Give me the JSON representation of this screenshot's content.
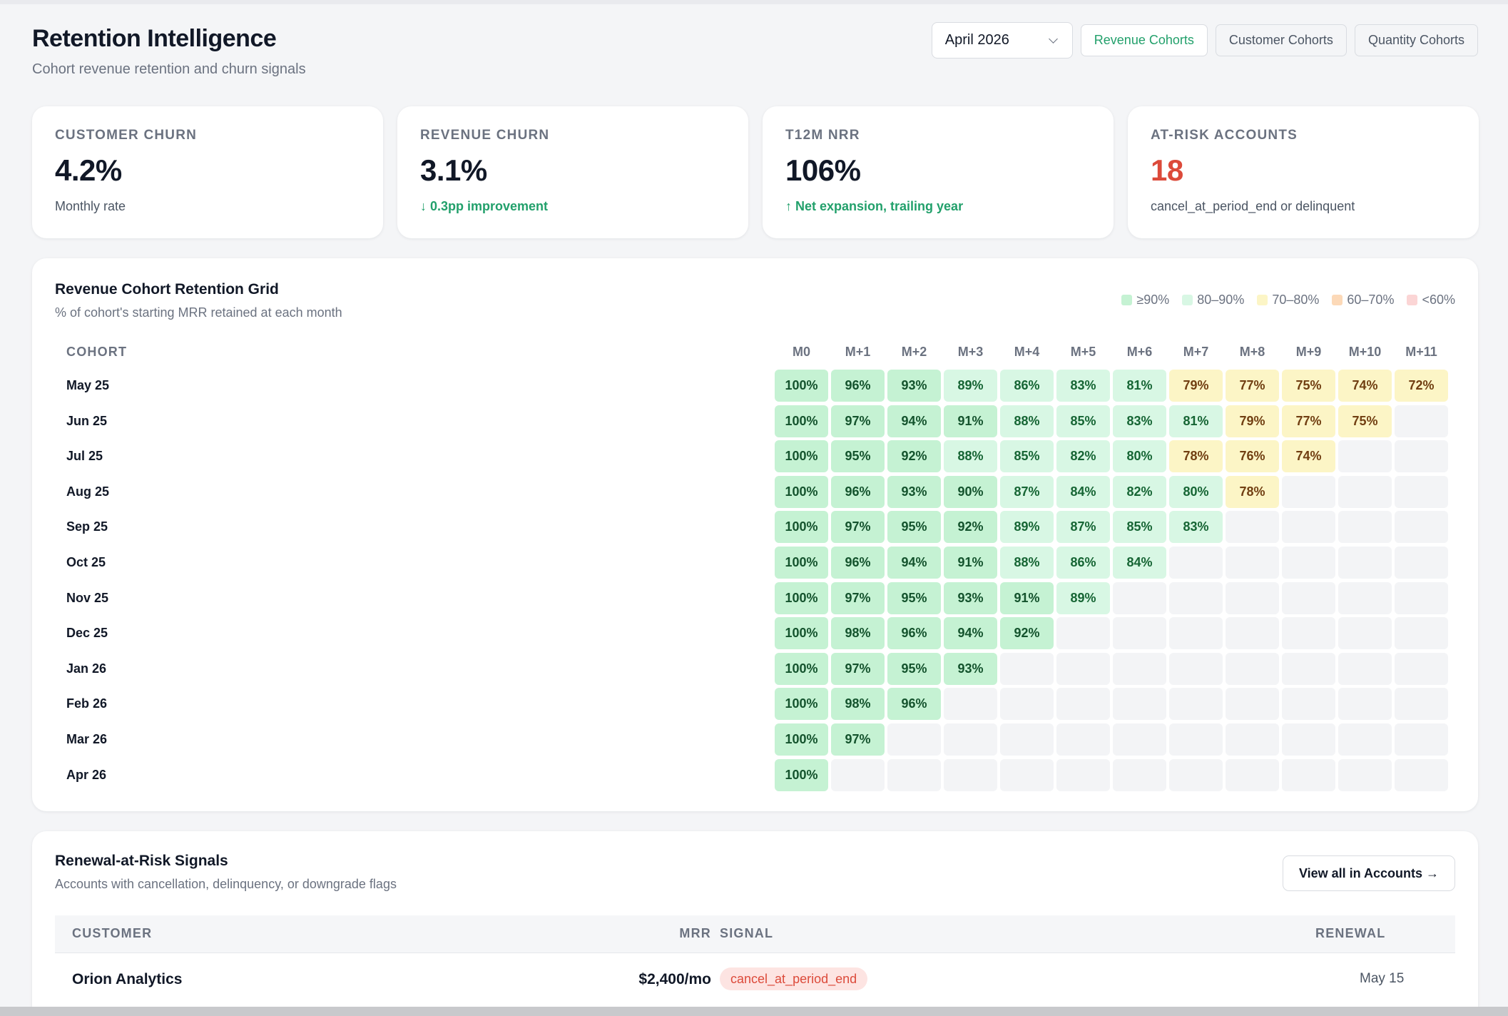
{
  "header": {
    "title": "Retention Intelligence",
    "subtitle": "Cohort revenue retention and churn signals",
    "month_select": "April 2026",
    "tabs": [
      {
        "label": "Revenue Cohorts",
        "active": true
      },
      {
        "label": "Customer Cohorts",
        "active": false
      },
      {
        "label": "Quantity Cohorts",
        "active": false
      }
    ]
  },
  "kpis": [
    {
      "label": "CUSTOMER CHURN",
      "value": "4.2%",
      "note": "Monthly rate"
    },
    {
      "label": "REVENUE CHURN",
      "value": "3.1%",
      "note": "↓ 0.3pp improvement"
    },
    {
      "label": "T12M NRR",
      "value": "106%",
      "note": "↑ Net expansion, trailing year"
    },
    {
      "label": "AT-RISK ACCOUNTS",
      "value": "18",
      "note": "cancel_at_period_end or delinquent"
    }
  ],
  "grid": {
    "title": "Revenue Cohort Retention Grid",
    "subtitle": "% of cohort's starting MRR retained at each month",
    "legend": [
      {
        "label": "≥90%",
        "color": "#c5f2d3"
      },
      {
        "label": "80–90%",
        "color": "#d8f7e4"
      },
      {
        "label": "70–80%",
        "color": "#fcf5c6"
      },
      {
        "label": "60–70%",
        "color": "#fcd9b8"
      },
      {
        "label": "<60%",
        "color": "#fbd5d5"
      }
    ],
    "cohort_header": "COHORT",
    "columns": [
      "M0",
      "M+1",
      "M+2",
      "M+3",
      "M+4",
      "M+5",
      "M+6",
      "M+7",
      "M+8",
      "M+9",
      "M+10",
      "M+11"
    ],
    "rows": [
      {
        "cohort": "May 25",
        "values": [
          "100%",
          "96%",
          "93%",
          "89%",
          "86%",
          "83%",
          "81%",
          "79%",
          "77%",
          "75%",
          "74%",
          "72%"
        ]
      },
      {
        "cohort": "Jun 25",
        "values": [
          "100%",
          "97%",
          "94%",
          "91%",
          "88%",
          "85%",
          "83%",
          "81%",
          "79%",
          "77%",
          "75%"
        ]
      },
      {
        "cohort": "Jul 25",
        "values": [
          "100%",
          "95%",
          "92%",
          "88%",
          "85%",
          "82%",
          "80%",
          "78%",
          "76%",
          "74%"
        ]
      },
      {
        "cohort": "Aug 25",
        "values": [
          "100%",
          "96%",
          "93%",
          "90%",
          "87%",
          "84%",
          "82%",
          "80%",
          "78%"
        ]
      },
      {
        "cohort": "Sep 25",
        "values": [
          "100%",
          "97%",
          "95%",
          "92%",
          "89%",
          "87%",
          "85%",
          "83%"
        ]
      },
      {
        "cohort": "Oct 25",
        "values": [
          "100%",
          "96%",
          "94%",
          "91%",
          "88%",
          "86%",
          "84%"
        ]
      },
      {
        "cohort": "Nov 25",
        "values": [
          "100%",
          "97%",
          "95%",
          "93%",
          "91%",
          "89%"
        ]
      },
      {
        "cohort": "Dec 25",
        "values": [
          "100%",
          "98%",
          "96%",
          "94%",
          "92%"
        ]
      },
      {
        "cohort": "Jan 26",
        "values": [
          "100%",
          "97%",
          "95%",
          "93%"
        ]
      },
      {
        "cohort": "Feb 26",
        "values": [
          "100%",
          "98%",
          "96%"
        ]
      },
      {
        "cohort": "Mar 26",
        "values": [
          "100%",
          "97%"
        ]
      },
      {
        "cohort": "Apr 26",
        "values": [
          "100%"
        ]
      }
    ]
  },
  "risk": {
    "title": "Renewal-at-Risk Signals",
    "subtitle": "Accounts with cancellation, delinquency, or downgrade flags",
    "view_all": "View all in Accounts →",
    "columns": {
      "customer": "CUSTOMER",
      "mrr": "MRR",
      "signal": "SIGNAL",
      "renewal": "RENEWAL"
    },
    "rows": [
      {
        "customer": "Orion Analytics",
        "mrr": "$2,400/mo",
        "signal": "cancel_at_period_end",
        "renewal": "May 15"
      }
    ]
  }
}
